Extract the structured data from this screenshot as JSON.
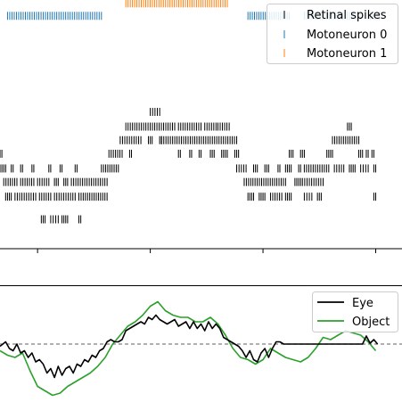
{
  "chart_data": [
    {
      "type": "scatter",
      "subtype": "raster",
      "title": "",
      "xlabel": "",
      "ylabel": "",
      "xlim": [
        0,
        10.7
      ],
      "ylim": [
        0,
        11
      ],
      "xticks": [
        1,
        4,
        7,
        10
      ],
      "grid": false,
      "legend_placement": "top-right",
      "series": [
        {
          "name": "Retinal spikes",
          "color": "#000000",
          "marker": "vertical-tick",
          "rows": [
            {
              "y": 1.3,
              "segments": [
                [
                  1.1,
                  1.2
                ],
                [
                  1.35,
                  1.55
                ],
                [
                  1.65,
                  1.8
                ],
                [
                  2.1,
                  2.15
                ]
              ]
            },
            {
              "y": 2.3,
              "segments": [
                [
                  0.15,
                  0.3
                ],
                [
                  0.4,
                  0.95
                ],
                [
                  1.05,
                  1.35
                ],
                [
                  1.45,
                  2.0
                ],
                [
                  2.1,
                  2.85
                ],
                [
                  6.6,
                  6.75
                ],
                [
                  6.9,
                  7.05
                ],
                [
                  7.2,
                  7.5
                ],
                [
                  7.6,
                  7.75
                ],
                [
                  8.1,
                  8.3
                ],
                [
                  8.45,
                  8.55
                ],
                [
                  9.95,
                  10.0
                ]
              ]
            },
            {
              "y": 2.95,
              "segments": [
                [
                  0.1,
                  0.45
                ],
                [
                  0.55,
                  0.9
                ],
                [
                  1.0,
                  1.3
                ],
                [
                  1.45,
                  1.55
                ],
                [
                  1.7,
                  1.8
                ],
                [
                  1.9,
                  2.85
                ],
                [
                  6.5,
                  7.6
                ],
                [
                  7.85,
                  8.0
                ],
                [
                  8.05,
                  8.6
                ]
              ]
            },
            {
              "y": 3.55,
              "segments": [
                [
                  0.0,
                  0.15
                ],
                [
                  0.3,
                  0.35
                ],
                [
                  0.55,
                  0.6
                ],
                [
                  0.85,
                  0.9
                ],
                [
                  1.3,
                  1.35
                ],
                [
                  1.6,
                  1.65
                ],
                [
                  2.0,
                  2.05
                ],
                [
                  2.7,
                  3.15
                ],
                [
                  6.3,
                  6.55
                ],
                [
                  6.75,
                  6.85
                ],
                [
                  7.05,
                  7.15
                ],
                [
                  7.4,
                  7.45
                ],
                [
                  7.6,
                  7.75
                ],
                [
                  7.95,
                  8.0
                ],
                [
                  8.1,
                  8.75
                ],
                [
                  8.9,
                  9.15
                ],
                [
                  9.3,
                  9.45
                ],
                [
                  9.6,
                  9.8
                ],
                [
                  9.95,
                  10.0
                ]
              ]
            },
            {
              "y": 4.2,
              "segments": [
                [
                  0.0,
                  0.05
                ],
                [
                  2.9,
                  3.25
                ],
                [
                  3.45,
                  3.5
                ],
                [
                  4.75,
                  4.8
                ],
                [
                  5.05,
                  5.1
                ],
                [
                  5.3,
                  5.35
                ],
                [
                  5.6,
                  5.7
                ],
                [
                  5.9,
                  6.05
                ],
                [
                  6.25,
                  6.35
                ],
                [
                  7.7,
                  7.8
                ],
                [
                  8.0,
                  8.1
                ],
                [
                  8.7,
                  8.85
                ],
                [
                  9.55,
                  9.65
                ],
                [
                  9.75,
                  9.8
                ],
                [
                  9.9,
                  9.95
                ]
              ]
            },
            {
              "y": 4.8,
              "segments": [
                [
                  3.2,
                  3.75
                ],
                [
                  3.95,
                  4.05
                ],
                [
                  4.25,
                  4.3
                ],
                [
                  4.3,
                  6.3
                ],
                [
                  8.85,
                  9.55
                ]
              ]
            },
            {
              "y": 5.4,
              "segments": [
                [
                  3.35,
                  4.65
                ],
                [
                  4.75,
                  5.35
                ],
                [
                  5.45,
                  5.75
                ],
                [
                  5.8,
                  6.1
                ],
                [
                  9.25,
                  9.35
                ]
              ]
            },
            {
              "y": 6.05,
              "segments": [
                [
                  4.0,
                  4.25
                ]
              ]
            }
          ]
        },
        {
          "name": "Motoneuron 0",
          "color": "#1f77b4",
          "marker": "vertical-tick",
          "rows": [
            {
              "y": 10.3,
              "segments": [
                [
                  0.2,
                  2.7
                ],
                [
                  6.6,
                  7.7
                ],
                [
                  8.1,
                  9.6
                ],
                [
                  9.8,
                  10.1
                ]
              ]
            }
          ]
        },
        {
          "name": "Motoneuron 1",
          "color": "#ff7f0e",
          "marker": "vertical-tick",
          "rows": [
            {
              "y": 10.85,
              "segments": [
                [
                  3.35,
                  6.05
                ]
              ]
            }
          ]
        }
      ]
    },
    {
      "type": "line",
      "title": "",
      "xlabel": "",
      "ylabel": "",
      "xlim": [
        0,
        10.7
      ],
      "ylim": [
        -1.3,
        1.3
      ],
      "grid": false,
      "legend_placement": "top-right",
      "reference_line": {
        "y": 0,
        "style": "dashed",
        "color": "#808080"
      },
      "series": [
        {
          "name": "Eye",
          "color": "#000000",
          "x": [
            0,
            0.15,
            0.25,
            0.35,
            0.45,
            0.55,
            0.65,
            0.75,
            0.85,
            0.95,
            1.05,
            1.15,
            1.25,
            1.35,
            1.45,
            1.55,
            1.65,
            1.75,
            1.85,
            1.95,
            2.05,
            2.15,
            2.25,
            2.35,
            2.45,
            2.55,
            2.65,
            2.75,
            2.85,
            2.95,
            3.05,
            3.15,
            3.25,
            3.35,
            3.45,
            3.55,
            3.65,
            3.75,
            3.85,
            3.95,
            4.05,
            4.15,
            4.25,
            4.35,
            4.45,
            4.55,
            4.65,
            4.75,
            4.85,
            4.95,
            5.05,
            5.15,
            5.25,
            5.35,
            5.45,
            5.55,
            5.65,
            5.75,
            5.85,
            5.95,
            6.05,
            6.15,
            6.25,
            6.35,
            6.45,
            6.55,
            6.65,
            6.75,
            6.85,
            6.95,
            7.05,
            7.15,
            7.25,
            7.35,
            7.45,
            7.55,
            7.65,
            7.75,
            7.85,
            7.95,
            8.05,
            8.15,
            8.25,
            8.35,
            8.45,
            8.55,
            8.65,
            8.75,
            8.85,
            8.95,
            9.05,
            9.15,
            9.25,
            9.35,
            9.45,
            9.55,
            9.65,
            9.75,
            9.85,
            9.95,
            10.05
          ],
          "values": [
            -0.05,
            0.05,
            -0.1,
            -0.15,
            0.0,
            -0.2,
            -0.15,
            -0.3,
            -0.2,
            -0.4,
            -0.35,
            -0.45,
            -0.65,
            -0.55,
            -0.75,
            -0.5,
            -0.7,
            -0.55,
            -0.5,
            -0.65,
            -0.45,
            -0.5,
            -0.35,
            -0.4,
            -0.25,
            -0.3,
            -0.15,
            -0.1,
            0.05,
            0.1,
            0.05,
            0.05,
            0.1,
            0.3,
            0.35,
            0.4,
            0.45,
            0.5,
            0.45,
            0.6,
            0.55,
            0.65,
            0.55,
            0.5,
            0.45,
            0.5,
            0.55,
            0.4,
            0.45,
            0.5,
            0.35,
            0.5,
            0.35,
            0.45,
            0.3,
            0.5,
            0.35,
            0.45,
            0.35,
            0.15,
            0.1,
            0.05,
            0.0,
            -0.05,
            -0.15,
            -0.3,
            -0.15,
            -0.35,
            -0.4,
            -0.2,
            -0.1,
            -0.3,
            -0.1,
            0.05,
            0.05,
            0.0,
            0.0,
            0.0,
            0.0,
            0.0,
            0.0,
            0.0,
            0.0,
            0.0,
            0.0,
            0.0,
            0.0,
            0.0,
            0.0,
            0.0,
            0.0,
            0.0,
            0.0,
            0.0,
            0.0,
            0.0,
            0.0,
            0.18,
            0.02,
            0.1,
            0.0
          ]
        },
        {
          "name": "Object",
          "color": "#2ca02c",
          "x": [
            0,
            0.2,
            0.4,
            0.6,
            0.8,
            1.0,
            1.2,
            1.4,
            1.6,
            1.8,
            2.0,
            2.2,
            2.4,
            2.6,
            2.8,
            3.0,
            3.2,
            3.4,
            3.6,
            3.8,
            4.0,
            4.2,
            4.4,
            4.6,
            4.8,
            5.0,
            5.2,
            5.4,
            5.6,
            5.8,
            6.0,
            6.2,
            6.4,
            6.6,
            6.8,
            7.0,
            7.2,
            7.4,
            7.6,
            7.8,
            8.0,
            8.2,
            8.4,
            8.6,
            8.8,
            9.0,
            9.2,
            9.4,
            9.6,
            9.8,
            10.0
          ],
          "values": [
            -0.15,
            -0.25,
            -0.3,
            -0.2,
            -0.6,
            -0.95,
            -1.05,
            -1.15,
            -1.1,
            -0.95,
            -0.85,
            -0.75,
            -0.65,
            -0.5,
            -0.3,
            0.0,
            0.2,
            0.4,
            0.5,
            0.65,
            0.85,
            0.95,
            0.75,
            0.65,
            0.6,
            0.6,
            0.5,
            0.5,
            0.6,
            0.45,
            0.2,
            -0.1,
            -0.3,
            -0.35,
            -0.45,
            -0.35,
            -0.1,
            -0.2,
            -0.3,
            -0.35,
            -0.4,
            -0.3,
            -0.1,
            0.15,
            0.1,
            0.2,
            0.3,
            0.25,
            0.2,
            0.05,
            -0.15
          ]
        }
      ]
    }
  ]
}
